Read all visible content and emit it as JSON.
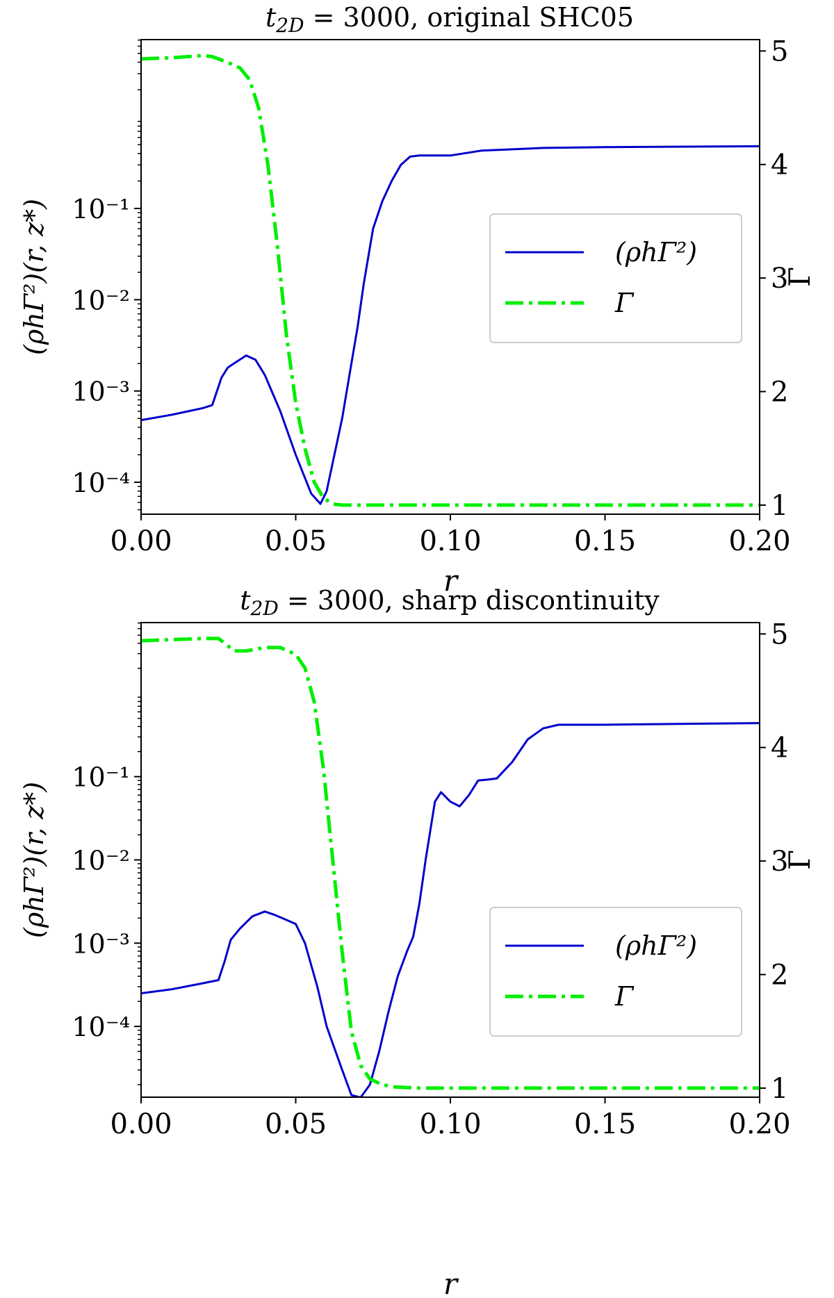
{
  "figure": {
    "background": "#ffffff"
  },
  "chart_data": [
    {
      "type": "line",
      "title": "t_2D = 3000, original SHC05",
      "title_parts": {
        "sym": "t",
        "sub": "2D",
        "rest": " = 3000, original SHC05"
      },
      "xlabel": "r",
      "ylabel": "(ρhΓ²)(r, z*)",
      "y2label": "Γ",
      "xlim": [
        0,
        0.2
      ],
      "ylim_log10": [
        -4.35,
        0.85
      ],
      "y2lim": [
        0.92,
        5.1
      ],
      "x_ticks": [
        0,
        0.05,
        0.1,
        0.15,
        0.2
      ],
      "x_tick_labels": [
        "0.00",
        "0.05",
        "0.10",
        "0.15",
        "0.20"
      ],
      "y_ticks_log10": [
        -1,
        -2,
        -3,
        -4
      ],
      "y_tick_labels": [
        "10⁻¹",
        "10⁻²",
        "10⁻³",
        "10⁻⁴"
      ],
      "y2_ticks": [
        1,
        2,
        3,
        4,
        5
      ],
      "y2_tick_labels": [
        "1",
        "2",
        "3",
        "4",
        "5"
      ],
      "legend": {
        "position": "center-right",
        "entries": [
          "(ρhΓ²)",
          "Γ"
        ]
      },
      "series": [
        {
          "name": "(ρhΓ²)",
          "axis": "left",
          "color": "#0000cc",
          "style": "solid",
          "points": [
            [
              0.0,
              0.00048
            ],
            [
              0.01,
              0.00055
            ],
            [
              0.02,
              0.00065
            ],
            [
              0.023,
              0.0007
            ],
            [
              0.026,
              0.0014
            ],
            [
              0.028,
              0.0018
            ],
            [
              0.03,
              0.002
            ],
            [
              0.034,
              0.00245
            ],
            [
              0.037,
              0.0022
            ],
            [
              0.04,
              0.0015
            ],
            [
              0.045,
              0.0006
            ],
            [
              0.05,
              0.0002
            ],
            [
              0.055,
              7.5e-05
            ],
            [
              0.058,
              5.8e-05
            ],
            [
              0.06,
              8e-05
            ],
            [
              0.065,
              0.0005
            ],
            [
              0.068,
              0.002
            ],
            [
              0.07,
              0.005
            ],
            [
              0.072,
              0.015
            ],
            [
              0.075,
              0.06
            ],
            [
              0.078,
              0.12
            ],
            [
              0.081,
              0.2
            ],
            [
              0.084,
              0.3
            ],
            [
              0.087,
              0.37
            ],
            [
              0.09,
              0.38
            ],
            [
              0.1,
              0.38
            ],
            [
              0.11,
              0.43
            ],
            [
              0.13,
              0.46
            ],
            [
              0.15,
              0.47
            ],
            [
              0.2,
              0.48
            ]
          ]
        },
        {
          "name": "Γ",
          "axis": "right",
          "color": "#00ee00",
          "style": "dashdot",
          "points": [
            [
              0.0,
              4.93
            ],
            [
              0.01,
              4.94
            ],
            [
              0.02,
              4.96
            ],
            [
              0.023,
              4.95
            ],
            [
              0.028,
              4.9
            ],
            [
              0.032,
              4.85
            ],
            [
              0.035,
              4.75
            ],
            [
              0.038,
              4.5
            ],
            [
              0.041,
              4.0
            ],
            [
              0.044,
              3.3
            ],
            [
              0.047,
              2.5
            ],
            [
              0.05,
              1.9
            ],
            [
              0.053,
              1.5
            ],
            [
              0.056,
              1.2
            ],
            [
              0.059,
              1.06
            ],
            [
              0.062,
              1.01
            ],
            [
              0.065,
              1.0
            ],
            [
              0.1,
              1.0
            ],
            [
              0.2,
              1.0
            ]
          ]
        }
      ]
    },
    {
      "type": "line",
      "title": "t_2D = 3000, sharp discontinuity",
      "title_parts": {
        "sym": "t",
        "sub": "2D",
        "rest": " = 3000, sharp discontinuity"
      },
      "xlabel": "r",
      "ylabel": "(ρhΓ²)(r, z*)",
      "y2label": "Γ",
      "xlim": [
        0,
        0.2
      ],
      "ylim_log10": [
        -4.85,
        0.85
      ],
      "y2lim": [
        0.92,
        5.1
      ],
      "x_ticks": [
        0,
        0.05,
        0.1,
        0.15,
        0.2
      ],
      "x_tick_labels": [
        "0.00",
        "0.05",
        "0.10",
        "0.15",
        "0.20"
      ],
      "y_ticks_log10": [
        -1,
        -2,
        -3,
        -4
      ],
      "y_tick_labels": [
        "10⁻¹",
        "10⁻²",
        "10⁻³",
        "10⁻⁴"
      ],
      "y2_ticks": [
        1,
        2,
        3,
        4,
        5
      ],
      "y2_tick_labels": [
        "1",
        "2",
        "3",
        "4",
        "5"
      ],
      "legend": {
        "position": "center-right",
        "entries": [
          "(ρhΓ²)",
          "Γ"
        ]
      },
      "series": [
        {
          "name": "(ρhΓ²)",
          "axis": "left",
          "color": "#0000cc",
          "style": "solid",
          "points": [
            [
              0.0,
              0.00025
            ],
            [
              0.01,
              0.00028
            ],
            [
              0.02,
              0.00033
            ],
            [
              0.025,
              0.00036
            ],
            [
              0.027,
              0.0006
            ],
            [
              0.029,
              0.0011
            ],
            [
              0.032,
              0.0015
            ],
            [
              0.036,
              0.0021
            ],
            [
              0.04,
              0.0024
            ],
            [
              0.043,
              0.0022
            ],
            [
              0.047,
              0.0019
            ],
            [
              0.05,
              0.0017
            ],
            [
              0.053,
              0.001
            ],
            [
              0.057,
              0.0003
            ],
            [
              0.06,
              0.0001
            ],
            [
              0.065,
              3e-05
            ],
            [
              0.068,
              1.5e-05
            ],
            [
              0.071,
              1.4e-05
            ],
            [
              0.074,
              2e-05
            ],
            [
              0.077,
              5e-05
            ],
            [
              0.08,
              0.00015
            ],
            [
              0.083,
              0.0004
            ],
            [
              0.086,
              0.0008
            ],
            [
              0.088,
              0.0012
            ],
            [
              0.09,
              0.003
            ],
            [
              0.092,
              0.01
            ],
            [
              0.095,
              0.05
            ],
            [
              0.097,
              0.065
            ],
            [
              0.1,
              0.05
            ],
            [
              0.103,
              0.044
            ],
            [
              0.106,
              0.06
            ],
            [
              0.109,
              0.09
            ],
            [
              0.112,
              0.092
            ],
            [
              0.115,
              0.095
            ],
            [
              0.12,
              0.15
            ],
            [
              0.125,
              0.28
            ],
            [
              0.13,
              0.38
            ],
            [
              0.135,
              0.42
            ],
            [
              0.15,
              0.42
            ],
            [
              0.2,
              0.44
            ]
          ]
        },
        {
          "name": "Γ",
          "axis": "right",
          "color": "#00ee00",
          "style": "dashdot",
          "points": [
            [
              0.0,
              4.94
            ],
            [
              0.02,
              4.96
            ],
            [
              0.025,
              4.96
            ],
            [
              0.027,
              4.92
            ],
            [
              0.03,
              4.85
            ],
            [
              0.034,
              4.85
            ],
            [
              0.04,
              4.88
            ],
            [
              0.045,
              4.88
            ],
            [
              0.05,
              4.82
            ],
            [
              0.053,
              4.7
            ],
            [
              0.056,
              4.4
            ],
            [
              0.059,
              3.8
            ],
            [
              0.062,
              3.0
            ],
            [
              0.065,
              2.2
            ],
            [
              0.068,
              1.5
            ],
            [
              0.071,
              1.2
            ],
            [
              0.074,
              1.08
            ],
            [
              0.078,
              1.03
            ],
            [
              0.082,
              1.01
            ],
            [
              0.09,
              1.0
            ],
            [
              0.2,
              1.0
            ]
          ]
        }
      ]
    }
  ]
}
